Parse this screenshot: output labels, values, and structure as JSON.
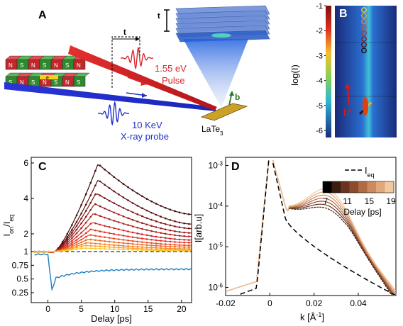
{
  "panels": {
    "A": {
      "label": "A",
      "t_label": "t",
      "pump_label_1": "1.55 eV",
      "pump_label_2": "Pulse",
      "probe_label_1": "10 KeV",
      "probe_label_2": "X-ray probe",
      "sample_label": "LaTe",
      "sample_sub": "3",
      "b_label": "b",
      "undulator_letters": [
        "N",
        "S",
        "N",
        "S",
        "N",
        "S",
        "N"
      ],
      "undulator_letters_bottom": [
        "S",
        "N",
        "S",
        "N",
        "S",
        "N",
        "S"
      ],
      "undulator_e": "e",
      "colors": {
        "pump": "#d7262b",
        "probe": "#2030c8",
        "magnet_red": "#c0282c",
        "magnet_green": "#2f8a2f",
        "sample": "#c9a227"
      }
    },
    "B": {
      "label": "B",
      "ylabel": "log(I)",
      "colorbar_ticks": [
        "-1",
        "-2",
        "-3",
        "-4",
        "-5",
        "-6"
      ],
      "b_star_label": "b*",
      "circle_colors": [
        "#f2d024",
        "#f0a030",
        "#e87a30",
        "#d8502a",
        "#b8302a",
        "#8a1c1c",
        "#5a1010",
        "#2a0a0a"
      ]
    },
    "C": {
      "label": "C",
      "ylabel_main": "I",
      "ylabel_sub1": "on",
      "ylabel_mid": "/I",
      "ylabel_sub2": "eq",
      "xlabel": "Delay [ps]",
      "xticks": [
        "0",
        "5",
        "10",
        "15",
        "20"
      ],
      "yticks_top": [
        "6",
        "4",
        "2",
        "1"
      ],
      "yticks_bottom": [
        "0.75",
        "0.5",
        "0.25"
      ]
    },
    "D": {
      "label": "D",
      "ylabel": "I[arb.u]",
      "xlabel_main": "k [Å",
      "xlabel_sup": "-1",
      "xlabel_end": "]",
      "xticks": [
        "-0.02",
        "0",
        "0.02",
        "0.04"
      ],
      "ytick_base": "10",
      "ytick_exps": [
        "-3",
        "-4",
        "-5",
        "-6"
      ],
      "legend_label": "I",
      "legend_sub": "eq",
      "cbar_ticks": [
        "7",
        "11",
        "15",
        "19"
      ],
      "cbar_label": "Delay [ps]",
      "cbar_colors": [
        "#000000",
        "#3a1c10",
        "#6a3420",
        "#8c4a2e",
        "#b06a44",
        "#cc8a5e",
        "#e2a87c",
        "#f3c8a0"
      ]
    }
  },
  "chart_data": [
    {
      "panel": "C",
      "type": "line",
      "xlabel": "Delay [ps]",
      "ylabel": "Ion/Ieq",
      "xlim": [
        -2.5,
        21.5
      ],
      "ylim": [
        1,
        6.3
      ],
      "peak_delays": [
        7.5,
        7.5,
        7.2,
        7.0,
        6.8,
        6.6,
        6.4,
        6.2,
        6.0,
        5.8,
        5.6,
        5.4
      ],
      "series": [
        {
          "color": "#3a0a0a",
          "peak": 5.95,
          "end": 3.1
        },
        {
          "color": "#5c1010",
          "peak": 5.05,
          "end": 2.55
        },
        {
          "color": "#7a1414",
          "peak": 4.3,
          "end": 2.3
        },
        {
          "color": "#961a1a",
          "peak": 3.7,
          "end": 2.05
        },
        {
          "color": "#b02020",
          "peak": 3.15,
          "end": 1.85
        },
        {
          "color": "#c82828",
          "peak": 2.65,
          "end": 1.65
        },
        {
          "color": "#dc3424",
          "peak": 2.25,
          "end": 1.5
        },
        {
          "color": "#e84a22",
          "peak": 1.95,
          "end": 1.35
        },
        {
          "color": "#f06622",
          "peak": 1.7,
          "end": 1.25
        },
        {
          "color": "#f48424",
          "peak": 1.5,
          "end": 1.15
        },
        {
          "color": "#f8a428",
          "peak": 1.35,
          "end": 1.08
        },
        {
          "color": "#f6c82a",
          "peak": 1.2,
          "end": 1.04
        }
      ],
      "bottom_series": {
        "color": "#1f7fc4",
        "ylim": [
          0.25,
          1.0
        ],
        "dip_y": 0.3,
        "plateau_y": 0.68
      }
    },
    {
      "panel": "D",
      "type": "line",
      "xlabel": "k [Å-1]",
      "ylabel": "I[arb.u]",
      "xlim": [
        -0.02,
        0.057
      ],
      "ylim_log10": [
        -6.2,
        -2.8
      ],
      "legend": "Ieq",
      "delays": [
        7,
        9,
        11,
        13,
        15,
        17,
        19
      ],
      "bump_center_k": 0.027
    }
  ]
}
